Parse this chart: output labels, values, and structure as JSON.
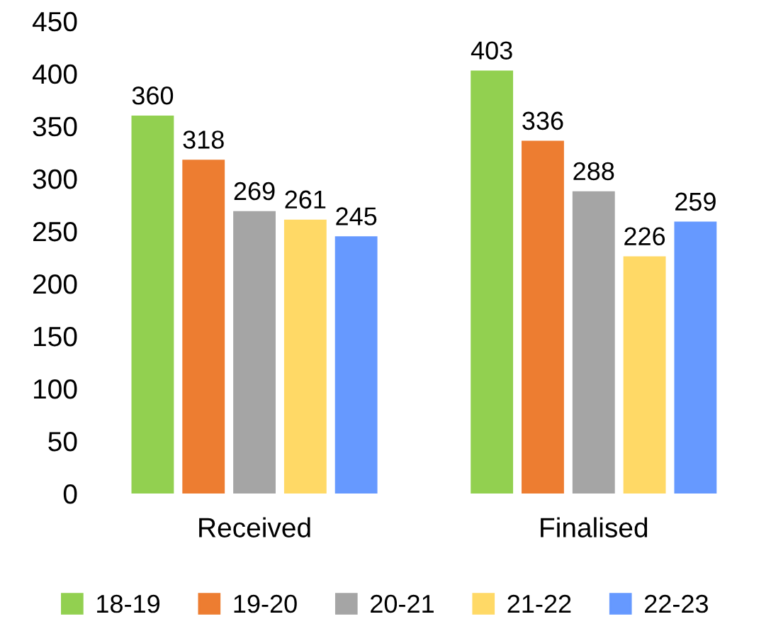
{
  "chart_data": {
    "type": "bar",
    "categories": [
      "Received",
      "Finalised"
    ],
    "series": [
      {
        "name": "18-19",
        "color": "#92d050",
        "values": [
          360,
          403
        ]
      },
      {
        "name": "19-20",
        "color": "#ed7d31",
        "values": [
          318,
          336
        ]
      },
      {
        "name": "20-21",
        "color": "#a5a5a5",
        "values": [
          269,
          288
        ]
      },
      {
        "name": "21-22",
        "color": "#ffd966",
        "values": [
          261,
          226
        ]
      },
      {
        "name": "22-23",
        "color": "#6699ff",
        "values": [
          245,
          259
        ]
      }
    ],
    "ylim": [
      0,
      450
    ],
    "yticks": [
      0,
      50,
      100,
      150,
      200,
      250,
      300,
      350,
      400,
      450
    ],
    "data_labels": true,
    "grid": false,
    "legend": "bottom"
  }
}
